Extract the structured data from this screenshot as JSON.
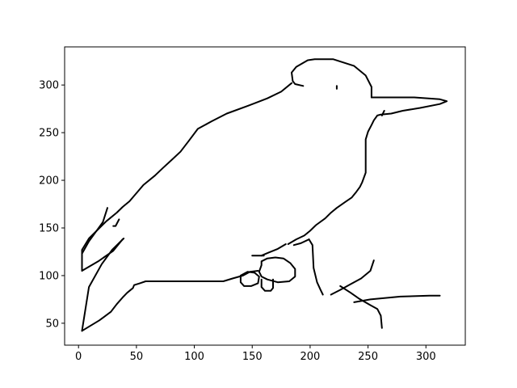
{
  "chart_data": {
    "type": "line",
    "title": "",
    "xlabel": "",
    "ylabel": "",
    "xlim": [
      -12,
      334
    ],
    "ylim": [
      27,
      340
    ],
    "grid": false,
    "legend": "none",
    "line_color": "#000000",
    "x_ticks": [
      0,
      50,
      100,
      150,
      200,
      250,
      300
    ],
    "y_ticks": [
      50,
      100,
      150,
      200,
      250,
      300
    ],
    "x_tick_labels": [
      "0",
      "50",
      "100",
      "150",
      "200",
      "250",
      "300"
    ],
    "y_tick_labels": [
      "50",
      "100",
      "150",
      "200",
      "250",
      "300"
    ],
    "series": [
      {
        "values": [
          [
            3,
            42
          ],
          [
            18,
            53
          ],
          [
            28,
            62
          ],
          [
            33,
            70
          ],
          [
            38,
            77
          ],
          [
            42,
            82
          ],
          [
            47,
            87
          ],
          [
            48,
            90
          ],
          [
            53,
            92
          ],
          [
            58,
            94
          ],
          [
            95,
            94
          ],
          [
            110,
            94
          ],
          [
            125,
            94
          ],
          [
            133,
            97
          ],
          [
            142,
            100
          ],
          [
            148,
            104
          ],
          [
            155,
            105
          ]
        ]
      },
      {
        "values": [
          [
            3,
            42
          ],
          [
            9,
            88
          ],
          [
            20,
            112
          ],
          [
            29,
            127
          ],
          [
            39,
            139
          ]
        ]
      },
      {
        "values": [
          [
            3,
            105
          ],
          [
            3,
            127
          ],
          [
            9,
            139
          ],
          [
            19,
            151
          ],
          [
            24,
            157
          ],
          [
            27,
            160
          ],
          [
            33,
            166
          ],
          [
            38,
            172
          ],
          [
            44,
            178
          ],
          [
            56,
            195
          ],
          [
            66,
            205
          ],
          [
            73,
            213
          ],
          [
            81,
            222
          ],
          [
            88,
            230
          ],
          [
            95,
            241
          ],
          [
            103,
            254
          ],
          [
            115,
            262
          ],
          [
            128,
            270
          ],
          [
            146,
            278
          ],
          [
            163,
            286
          ],
          [
            175,
            293
          ],
          [
            184,
            302
          ]
        ]
      },
      {
        "values": [
          [
            3,
            105
          ],
          [
            17,
            115
          ],
          [
            30,
            126
          ],
          [
            38,
            138
          ]
        ]
      },
      {
        "values": [
          [
            3,
            123
          ],
          [
            9,
            136
          ],
          [
            15,
            146
          ],
          [
            21,
            156
          ],
          [
            25,
            171
          ]
        ]
      },
      {
        "values": [
          [
            194,
            299
          ],
          [
            187,
            301
          ],
          [
            185,
            304
          ],
          [
            184,
            313
          ],
          [
            188,
            319
          ],
          [
            198,
            326
          ],
          [
            204,
            327
          ],
          [
            220,
            327
          ],
          [
            238,
            320
          ],
          [
            248,
            310
          ],
          [
            253,
            298
          ],
          [
            253,
            287
          ]
        ]
      },
      {
        "values": [
          [
            253,
            287
          ],
          [
            290,
            287
          ],
          [
            312,
            285
          ],
          [
            318,
            283
          ],
          [
            312,
            280
          ],
          [
            295,
            276
          ],
          [
            280,
            273
          ],
          [
            270,
            270
          ],
          [
            261,
            269
          ],
          [
            258,
            268
          ],
          [
            255,
            263
          ],
          [
            253,
            258
          ],
          [
            250,
            251
          ],
          [
            248,
            243
          ],
          [
            248,
            208
          ],
          [
            245,
            198
          ],
          [
            243,
            193
          ],
          [
            240,
            188
          ],
          [
            236,
            182
          ],
          [
            230,
            177
          ],
          [
            223,
            171
          ],
          [
            218,
            166
          ],
          [
            213,
            160
          ],
          [
            205,
            153
          ],
          [
            200,
            147
          ],
          [
            195,
            142
          ],
          [
            188,
            138
          ],
          [
            181,
            133
          ]
        ]
      },
      {
        "values": [
          [
            179,
            133
          ],
          [
            172,
            128
          ],
          [
            164,
            124
          ],
          [
            158,
            121
          ]
        ]
      },
      {
        "values": [
          [
            158,
            115
          ],
          [
            163,
            118
          ],
          [
            170,
            119
          ],
          [
            177,
            118
          ],
          [
            183,
            113
          ],
          [
            187,
            107
          ],
          [
            187,
            99
          ],
          [
            182,
            94
          ],
          [
            172,
            93
          ],
          [
            163,
            96
          ],
          [
            158,
            99
          ],
          [
            156,
            104
          ],
          [
            158,
            111
          ],
          [
            158,
            115
          ]
        ]
      },
      {
        "values": [
          [
            140,
            100
          ],
          [
            146,
            104
          ],
          [
            152,
            103
          ],
          [
            156,
            99
          ],
          [
            155,
            92
          ],
          [
            149,
            89
          ],
          [
            143,
            89
          ],
          [
            140,
            93
          ],
          [
            140,
            100
          ]
        ]
      },
      {
        "values": [
          [
            158,
            96
          ],
          [
            158,
            88
          ],
          [
            161,
            84
          ],
          [
            166,
            84
          ],
          [
            168,
            87
          ],
          [
            168,
            96
          ]
        ]
      },
      {
        "values": [
          [
            218,
            80
          ],
          [
            226,
            85
          ],
          [
            235,
            91
          ],
          [
            244,
            97
          ],
          [
            252,
            105
          ],
          [
            255,
            116
          ]
        ]
      },
      {
        "values": [
          [
            226,
            89
          ],
          [
            235,
            82
          ],
          [
            242,
            76
          ],
          [
            252,
            69
          ],
          [
            258,
            65
          ],
          [
            261,
            58
          ],
          [
            262,
            45
          ]
        ]
      },
      {
        "values": [
          [
            238,
            72
          ],
          [
            252,
            75
          ],
          [
            278,
            78
          ],
          [
            303,
            79
          ],
          [
            312,
            79
          ]
        ]
      },
      {
        "values": [
          [
            199,
            138
          ],
          [
            202,
            132
          ],
          [
            203,
            108
          ],
          [
            206,
            93
          ],
          [
            209,
            85
          ],
          [
            211,
            80
          ]
        ]
      },
      {
        "values": [
          [
            186,
            132
          ],
          [
            192,
            134
          ],
          [
            199,
            138
          ]
        ]
      },
      {
        "values": [
          [
            150,
            121
          ],
          [
            160,
            121
          ]
        ]
      },
      {
        "values": [
          [
            262,
            268
          ],
          [
            264,
            273
          ]
        ]
      },
      {
        "values": [
          [
            223,
            296
          ],
          [
            223,
            299
          ]
        ]
      },
      {
        "values": [
          [
            30,
            152
          ],
          [
            32,
            152
          ],
          [
            35,
            159
          ]
        ]
      }
    ]
  }
}
